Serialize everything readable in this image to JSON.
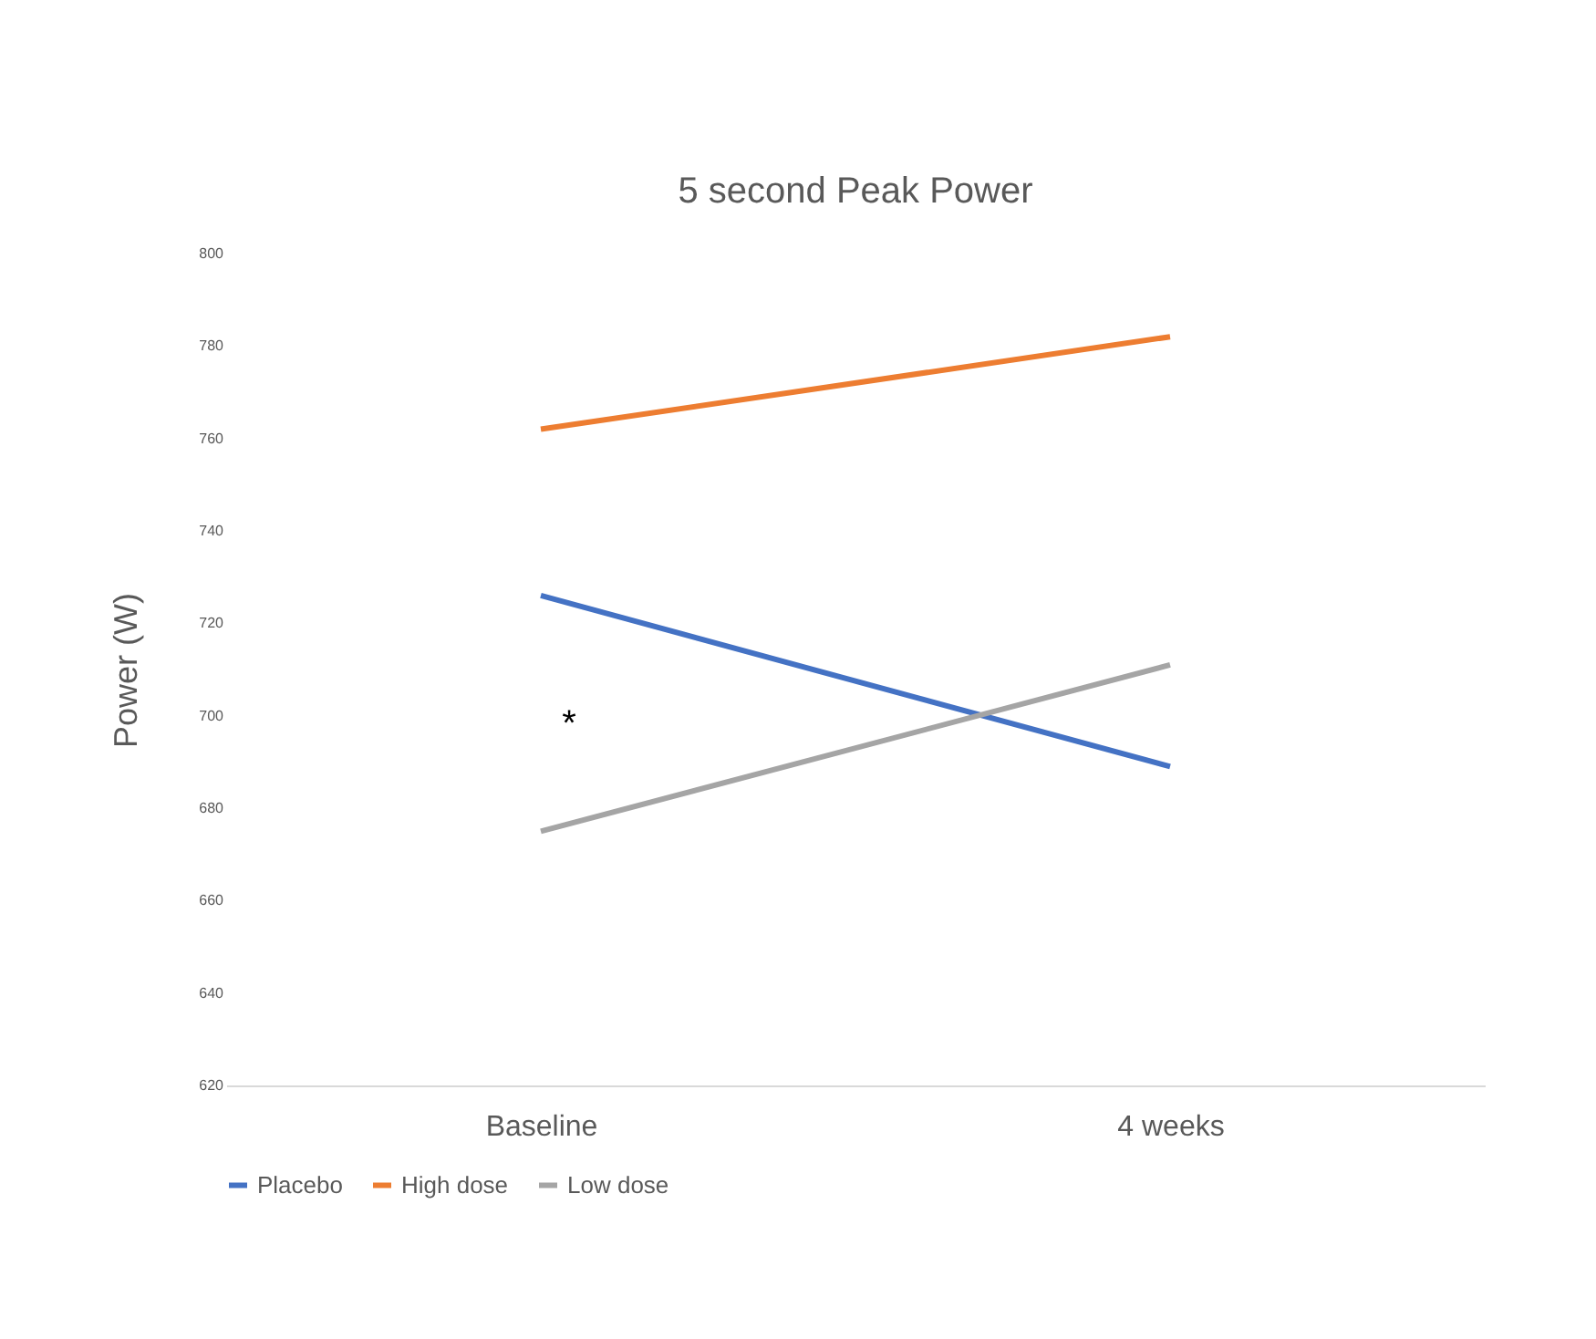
{
  "chart_data": {
    "type": "line",
    "title": "5 second Peak Power",
    "ylabel": "Power (W)",
    "categories": [
      "Baseline",
      "4 weeks"
    ],
    "series": [
      {
        "name": "Placebo",
        "color": "#4472c4",
        "values": [
          726,
          689
        ]
      },
      {
        "name": "High dose",
        "color": "#ed7d31",
        "values": [
          762,
          782
        ]
      },
      {
        "name": "Low dose",
        "color": "#a5a5a5",
        "values": [
          675,
          711
        ]
      }
    ],
    "ylim": [
      620,
      800
    ],
    "yticks": [
      620,
      640,
      660,
      680,
      700,
      720,
      740,
      760,
      780,
      800
    ],
    "annotations": [
      "*"
    ],
    "grid": false,
    "legend": "bottom",
    "marker": "none",
    "line_style": "solid"
  }
}
